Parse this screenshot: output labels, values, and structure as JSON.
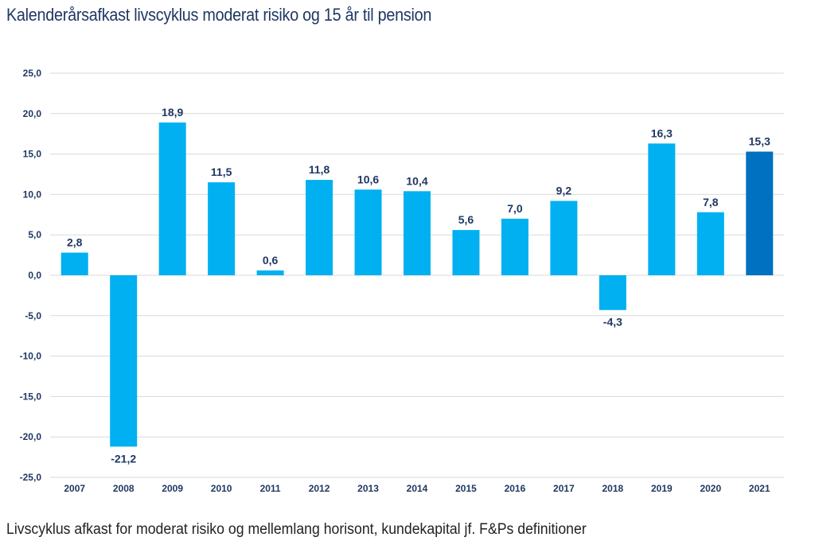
{
  "title": "Kalenderårsafkast livscyklus moderat risiko og 15 år til pension",
  "footnote": "Livscyklus afkast for moderat risiko og mellemlang horisont, kundekapital jf. F&Ps definitioner",
  "chart_data": {
    "type": "bar",
    "title": "Kalenderårsafkast livscyklus moderat risiko og 15 år til pension",
    "xlabel": "",
    "ylabel": "",
    "categories": [
      "2007",
      "2008",
      "2009",
      "2010",
      "2011",
      "2012",
      "2013",
      "2014",
      "2015",
      "2016",
      "2017",
      "2018",
      "2019",
      "2020",
      "2021"
    ],
    "values": [
      2.8,
      -21.2,
      18.9,
      11.5,
      0.6,
      11.8,
      10.6,
      10.4,
      5.6,
      7.0,
      9.2,
      -4.3,
      16.3,
      7.8,
      15.3
    ],
    "labels": [
      "2,8",
      "-21,2",
      "18,9",
      "11,5",
      "0,6",
      "11,8",
      "10,6",
      "10,4",
      "5,6",
      "7,0",
      "9,2",
      "-4,3",
      "16,3",
      "7,8",
      "15,3"
    ],
    "ylim": [
      -25,
      25
    ],
    "yticks": [
      25,
      20,
      15,
      10,
      5,
      0,
      -5,
      -10,
      -15,
      -20,
      -25
    ],
    "ytick_labels": [
      "25,0",
      "20,0",
      "15,0",
      "10,0",
      "5,0",
      "0,0",
      "-5,0",
      "-10,0",
      "-15,0",
      "-20,0",
      "-25,0"
    ],
    "grid": true,
    "colors": {
      "bar": "#00b0f0",
      "highlight": "#0070c0",
      "highlight_category": "2021",
      "text": "#1f3864",
      "grid": "#d9d9d9"
    }
  }
}
